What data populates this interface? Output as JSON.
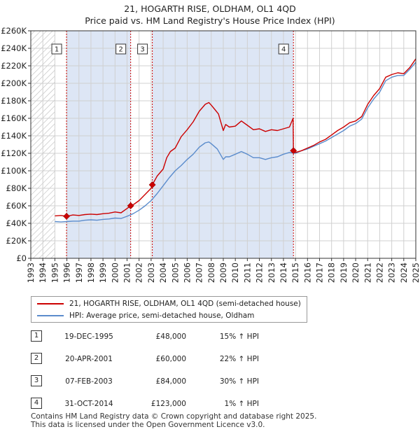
{
  "title_line1": "21, HOGARTH RISE, OLDHAM, OL1 4QD",
  "title_line2": "Price paid vs. HM Land Registry's House Price Index (HPI)",
  "legend": {
    "property": "21, HOGARTH RISE, OLDHAM, OL1 4QD (semi-detached house)",
    "hpi": "HPI: Average price, semi-detached house, Oldham"
  },
  "colors": {
    "property": "#cc0000",
    "hpi": "#5b8ccc",
    "shade": "#dde6f5",
    "hatch": "#bbbbbb",
    "grid": "#d0d0d0"
  },
  "sales": [
    {
      "num": "1",
      "date": "19-DEC-1995",
      "price": "£48,000",
      "hpi": "15% ↑ HPI"
    },
    {
      "num": "2",
      "date": "20-APR-2001",
      "price": "£60,000",
      "hpi": "22% ↑ HPI"
    },
    {
      "num": "3",
      "date": "07-FEB-2003",
      "price": "£84,000",
      "hpi": "30% ↑ HPI"
    },
    {
      "num": "4",
      "date": "31-OCT-2014",
      "price": "£123,000",
      "hpi": "1% ↑ HPI"
    }
  ],
  "footer_line1": "Contains HM Land Registry data © Crown copyright and database right 2025.",
  "footer_line2": "This data is licensed under the Open Government Licence v3.0.",
  "chart_data": {
    "type": "line",
    "title": "21, HOGARTH RISE, OLDHAM, OL1 4QD — Price paid vs. HM Land Registry's House Price Index (HPI)",
    "xlim": [
      1993,
      2025
    ],
    "ylim": [
      0,
      260000
    ],
    "x_ticks": [
      1993,
      1994,
      1995,
      1996,
      1997,
      1998,
      1999,
      2000,
      2001,
      2002,
      2003,
      2004,
      2005,
      2006,
      2007,
      2008,
      2009,
      2010,
      2011,
      2012,
      2013,
      2014,
      2015,
      2016,
      2017,
      2018,
      2019,
      2020,
      2021,
      2022,
      2023,
      2024,
      2025
    ],
    "y_ticks": [
      {
        "value": 0,
        "label": "£0"
      },
      {
        "value": 20000,
        "label": "£20K"
      },
      {
        "value": 40000,
        "label": "£40K"
      },
      {
        "value": 60000,
        "label": "£60K"
      },
      {
        "value": 80000,
        "label": "£80K"
      },
      {
        "value": 100000,
        "label": "£100K"
      },
      {
        "value": 120000,
        "label": "£120K"
      },
      {
        "value": 140000,
        "label": "£140K"
      },
      {
        "value": 160000,
        "label": "£160K"
      },
      {
        "value": 180000,
        "label": "£180K"
      },
      {
        "value": 200000,
        "label": "£200K"
      },
      {
        "value": 220000,
        "label": "£220K"
      },
      {
        "value": 240000,
        "label": "£240K"
      },
      {
        "value": 260000,
        "label": "£260K"
      }
    ],
    "data_start_year": 1995,
    "series": [
      {
        "name": "21, HOGARTH RISE, OLDHAM, OL1 4QD (semi-detached house)",
        "x": [
          1995.0,
          1995.5,
          1995.97,
          1996.5,
          1997.0,
          1997.5,
          1998.0,
          1998.5,
          1999.0,
          1999.5,
          2000.0,
          2000.5,
          2001.0,
          2001.3,
          2001.6,
          2002.0,
          2002.5,
          2003.0,
          2003.1,
          2003.5,
          2004.0,
          2004.3,
          2004.6,
          2005.0,
          2005.5,
          2006.0,
          2006.5,
          2007.0,
          2007.5,
          2007.8,
          2008.0,
          2008.3,
          2008.6,
          2009.0,
          2009.2,
          2009.5,
          2010.0,
          2010.5,
          2011.0,
          2011.5,
          2012.0,
          2012.5,
          2013.0,
          2013.5,
          2014.0,
          2014.5,
          2014.8,
          2014.83,
          2015.0,
          2015.5,
          2016.0,
          2016.5,
          2017.0,
          2017.5,
          2018.0,
          2018.5,
          2019.0,
          2019.5,
          2020.0,
          2020.5,
          2021.0,
          2021.5,
          2022.0,
          2022.5,
          2023.0,
          2023.5,
          2024.0,
          2024.5,
          2025.0
        ],
        "y": [
          48500,
          49000,
          48000,
          49500,
          49000,
          50000,
          50500,
          50000,
          51000,
          51500,
          53000,
          52000,
          57000,
          60000,
          62000,
          66000,
          73000,
          80000,
          84000,
          94000,
          102000,
          115000,
          122000,
          126000,
          139000,
          147000,
          156000,
          168000,
          176000,
          178000,
          175000,
          170000,
          165000,
          146000,
          153000,
          150000,
          151000,
          157000,
          152000,
          147000,
          148000,
          145000,
          147000,
          146000,
          148000,
          150000,
          160000,
          123000,
          121000,
          123000,
          126000,
          129000,
          133000,
          136000,
          141000,
          146000,
          150000,
          155000,
          157000,
          162000,
          176000,
          186000,
          194000,
          207000,
          210000,
          212000,
          211000,
          218000,
          228000
        ]
      },
      {
        "name": "HPI: Average price, semi-detached house, Oldham",
        "x": [
          1995.0,
          1995.5,
          1996.0,
          1996.5,
          1997.0,
          1997.5,
          1998.0,
          1998.5,
          1999.0,
          1999.5,
          2000.0,
          2000.5,
          2001.0,
          2001.5,
          2002.0,
          2002.5,
          2003.0,
          2003.5,
          2004.0,
          2004.5,
          2005.0,
          2005.5,
          2006.0,
          2006.5,
          2007.0,
          2007.5,
          2007.8,
          2008.0,
          2008.5,
          2009.0,
          2009.2,
          2009.5,
          2010.0,
          2010.5,
          2011.0,
          2011.5,
          2012.0,
          2012.5,
          2013.0,
          2013.5,
          2014.0,
          2014.5,
          2015.0,
          2015.5,
          2016.0,
          2016.5,
          2017.0,
          2017.5,
          2018.0,
          2018.5,
          2019.0,
          2019.5,
          2020.0,
          2020.5,
          2021.0,
          2021.5,
          2022.0,
          2022.5,
          2023.0,
          2023.5,
          2024.0,
          2024.5,
          2025.0
        ],
        "y": [
          42000,
          41500,
          42000,
          42500,
          42500,
          43500,
          44000,
          43500,
          44500,
          45000,
          46000,
          45500,
          48000,
          51000,
          55000,
          60000,
          66000,
          74000,
          83000,
          92000,
          100000,
          106000,
          113000,
          119000,
          127000,
          132000,
          133000,
          131000,
          125000,
          113000,
          116000,
          116000,
          119000,
          122000,
          119000,
          115000,
          115000,
          113000,
          115000,
          116000,
          119000,
          121000,
          120000,
          123000,
          125000,
          128000,
          131000,
          134000,
          138000,
          142000,
          146000,
          151000,
          154000,
          159000,
          172000,
          182000,
          190000,
          203000,
          207000,
          209000,
          209000,
          216000,
          224000
        ]
      }
    ],
    "sale_points": [
      {
        "label": "1",
        "x": 1995.97,
        "y": 48000
      },
      {
        "label": "2",
        "x": 2001.3,
        "y": 60000
      },
      {
        "label": "3",
        "x": 2003.1,
        "y": 84000
      },
      {
        "label": "4",
        "x": 2014.83,
        "y": 123000
      }
    ],
    "shaded_periods": [
      [
        1995.97,
        2001.3
      ],
      [
        2003.1,
        2014.83
      ]
    ]
  }
}
